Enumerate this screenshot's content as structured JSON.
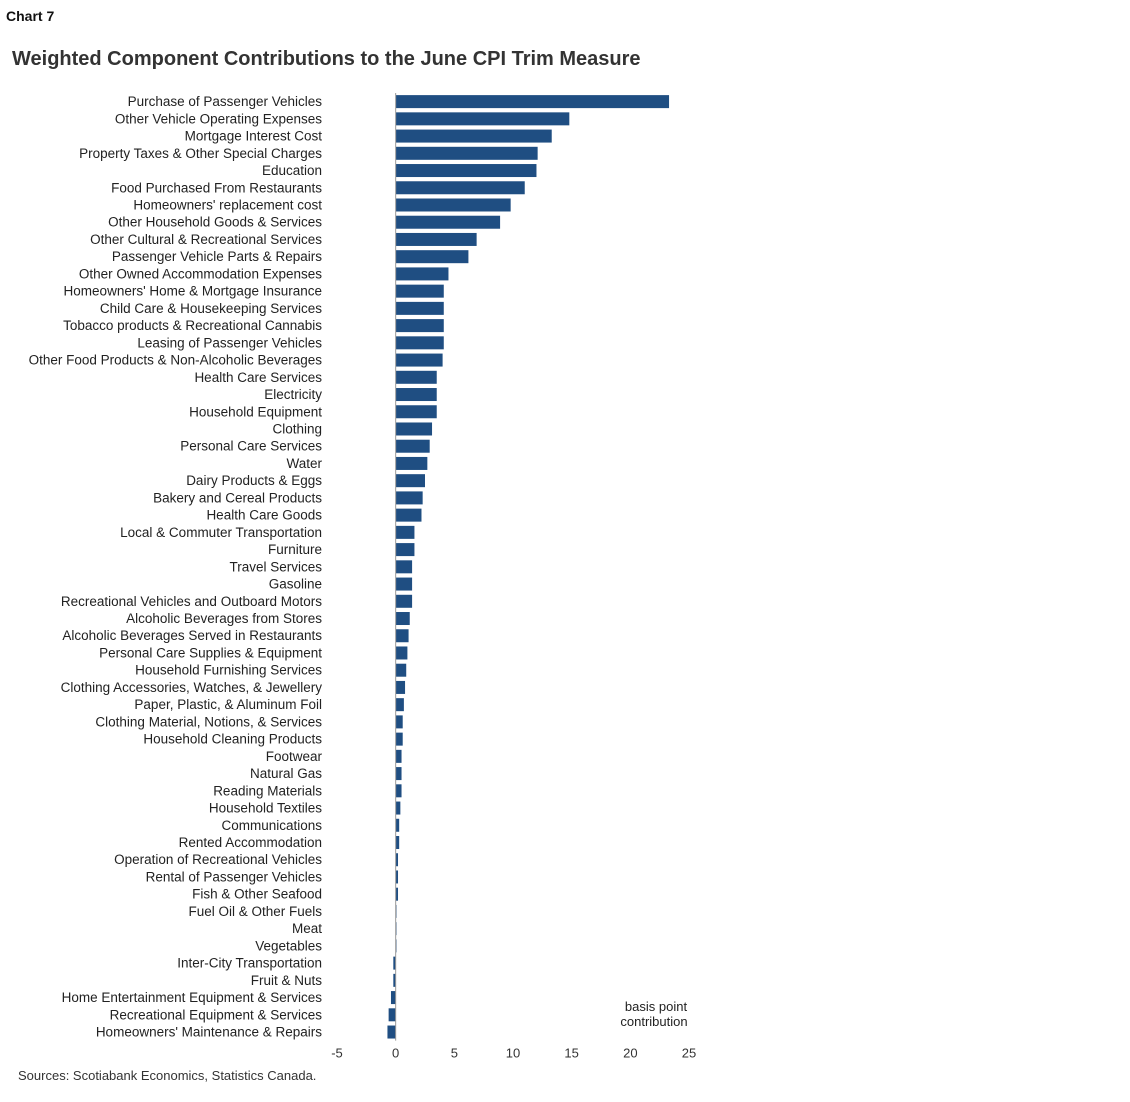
{
  "header": {
    "chart_number": "Chart 7"
  },
  "footer": {
    "sources": "Sources: Scotiabank Economics, Statistics Canada."
  },
  "colors": {
    "bar": "#1f4e82",
    "axis": "#9a9a9a"
  },
  "chart_data": {
    "type": "bar",
    "orientation": "horizontal",
    "title": "Weighted Component Contributions to the June CPI Trim Measure",
    "xlabel": "",
    "ylabel": "",
    "unit_label": [
      "basis point",
      "contribution"
    ],
    "xlim": [
      -5,
      25
    ],
    "xticks": [
      -5,
      0,
      5,
      10,
      15,
      20,
      25
    ],
    "grid": false,
    "categories": [
      "Purchase of Passenger Vehicles",
      "Other Vehicle Operating Expenses",
      "Mortgage Interest Cost",
      "Property Taxes & Other Special Charges",
      "Education",
      "Food Purchased From Restaurants",
      "Homeowners' replacement cost",
      "Other Household Goods & Services",
      "Other Cultural & Recreational Services",
      "Passenger Vehicle Parts & Repairs",
      "Other Owned Accommodation Expenses",
      "Homeowners' Home & Mortgage Insurance",
      "Child Care & Housekeeping Services",
      "Tobacco products & Recreational Cannabis",
      "Leasing of Passenger Vehicles",
      "Other Food Products & Non-Alcoholic Beverages",
      "Health Care Services",
      "Electricity",
      "Household Equipment",
      "Clothing",
      "Personal Care Services",
      "Water",
      "Dairy Products & Eggs",
      "Bakery and Cereal Products",
      "Health Care Goods",
      "Local & Commuter Transportation",
      "Furniture",
      "Travel Services",
      "Gasoline",
      "Recreational Vehicles and Outboard Motors",
      "Alcoholic Beverages from Stores",
      "Alcoholic Beverages Served in Restaurants",
      "Personal Care Supplies & Equipment",
      "Household Furnishing Services",
      "Clothing Accessories, Watches, & Jewellery",
      "Paper, Plastic, & Aluminum Foil",
      "Clothing Material, Notions, & Services",
      "Household Cleaning Products",
      "Footwear",
      "Natural Gas",
      "Reading Materials",
      "Household Textiles",
      "Communications",
      "Rented Accommodation",
      "Operation of Recreational Vehicles",
      "Rental of Passenger Vehicles",
      "Fish & Other Seafood",
      "Fuel Oil & Other Fuels",
      "Meat",
      "Vegetables",
      "Inter-City Transportation",
      "Fruit & Nuts",
      "Home Entertainment Equipment & Services",
      "Recreational Equipment & Services",
      "Homeowners' Maintenance & Repairs"
    ],
    "values": [
      23.3,
      14.8,
      13.3,
      12.1,
      12.0,
      11.0,
      9.8,
      8.9,
      6.9,
      6.2,
      4.5,
      4.1,
      4.1,
      4.1,
      4.1,
      4.0,
      3.5,
      3.5,
      3.5,
      3.1,
      2.9,
      2.7,
      2.5,
      2.3,
      2.2,
      1.6,
      1.6,
      1.4,
      1.4,
      1.4,
      1.2,
      1.1,
      1.0,
      0.9,
      0.8,
      0.7,
      0.6,
      0.6,
      0.5,
      0.5,
      0.5,
      0.4,
      0.3,
      0.3,
      0.2,
      0.2,
      0.2,
      0.05,
      0.05,
      0.05,
      -0.2,
      -0.2,
      -0.4,
      -0.6,
      -0.7
    ]
  }
}
